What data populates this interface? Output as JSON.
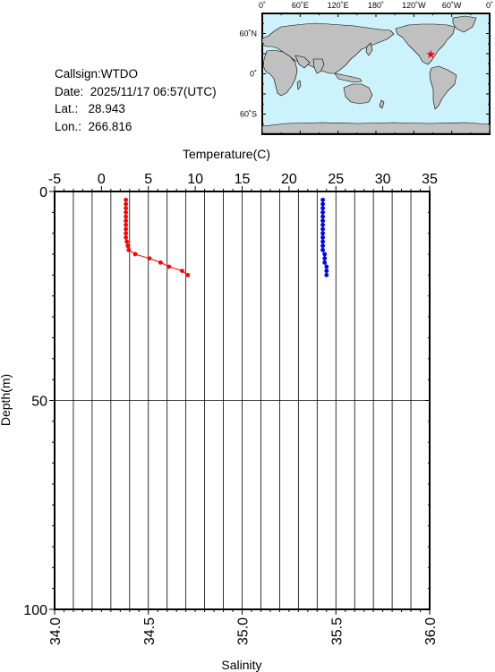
{
  "station": {
    "callsign_label": "Callsign:",
    "callsign": "WTDO",
    "date_label": "Date:",
    "date": "2025/11/17 06:57(UTC)",
    "lat_label": "Lat.:",
    "lat": "28.943",
    "lon_label": "Lon.:",
    "lon": "266.816"
  },
  "map": {
    "top_labels": [
      "0˚",
      "60˚E",
      "120˚E",
      "180˚",
      "120˚W",
      "60˚W",
      "0˚"
    ],
    "side_labels": [
      "60˚N",
      "0˚",
      "60˚S"
    ],
    "ocean_color": "#ccf2fb",
    "land_color": "#c0c0c0",
    "marker": "star",
    "marker_color": "#ff0000",
    "marker_lon": 266.816,
    "marker_lat": 28.943
  },
  "chart_data": {
    "type": "line",
    "temperature_axis": {
      "label": "Temperature(C)",
      "range": [
        -5,
        35
      ],
      "ticks": [
        "-5",
        "0",
        "5",
        "10",
        "15",
        "20",
        "25",
        "30",
        "35"
      ]
    },
    "salinity_axis": {
      "label": "Salinity",
      "range": [
        34.0,
        36.0
      ],
      "ticks": [
        "34.0",
        "34.5",
        "35.0",
        "35.5",
        "36.0"
      ]
    },
    "depth_axis": {
      "label": "Depth(m)",
      "range": [
        0,
        100
      ],
      "ticks": [
        "0",
        "50",
        "100"
      ]
    },
    "grid": true,
    "series": [
      {
        "color": "#ff0000",
        "axis": "temperature",
        "points": [
          {
            "value": 2.6,
            "depth": 2
          },
          {
            "value": 2.6,
            "depth": 3
          },
          {
            "value": 2.6,
            "depth": 4
          },
          {
            "value": 2.6,
            "depth": 5
          },
          {
            "value": 2.6,
            "depth": 6
          },
          {
            "value": 2.6,
            "depth": 7
          },
          {
            "value": 2.6,
            "depth": 8
          },
          {
            "value": 2.6,
            "depth": 9
          },
          {
            "value": 2.6,
            "depth": 10
          },
          {
            "value": 2.6,
            "depth": 11
          },
          {
            "value": 2.7,
            "depth": 12
          },
          {
            "value": 2.8,
            "depth": 13
          },
          {
            "value": 2.9,
            "depth": 14
          },
          {
            "value": 3.6,
            "depth": 15
          },
          {
            "value": 5.1,
            "depth": 16
          },
          {
            "value": 6.3,
            "depth": 17
          },
          {
            "value": 7.2,
            "depth": 18
          },
          {
            "value": 8.6,
            "depth": 19
          },
          {
            "value": 9.2,
            "depth": 20
          }
        ]
      },
      {
        "color": "#0000ff",
        "axis": "salinity",
        "points": [
          {
            "value": 35.43,
            "depth": 2
          },
          {
            "value": 35.43,
            "depth": 3
          },
          {
            "value": 35.43,
            "depth": 4
          },
          {
            "value": 35.43,
            "depth": 5
          },
          {
            "value": 35.43,
            "depth": 6
          },
          {
            "value": 35.43,
            "depth": 7
          },
          {
            "value": 35.43,
            "depth": 8
          },
          {
            "value": 35.43,
            "depth": 9
          },
          {
            "value": 35.43,
            "depth": 10
          },
          {
            "value": 35.43,
            "depth": 11
          },
          {
            "value": 35.43,
            "depth": 12
          },
          {
            "value": 35.43,
            "depth": 13
          },
          {
            "value": 35.43,
            "depth": 14
          },
          {
            "value": 35.44,
            "depth": 15
          },
          {
            "value": 35.44,
            "depth": 16
          },
          {
            "value": 35.44,
            "depth": 17
          },
          {
            "value": 35.45,
            "depth": 18
          },
          {
            "value": 35.45,
            "depth": 19
          },
          {
            "value": 35.45,
            "depth": 20
          }
        ]
      }
    ]
  }
}
